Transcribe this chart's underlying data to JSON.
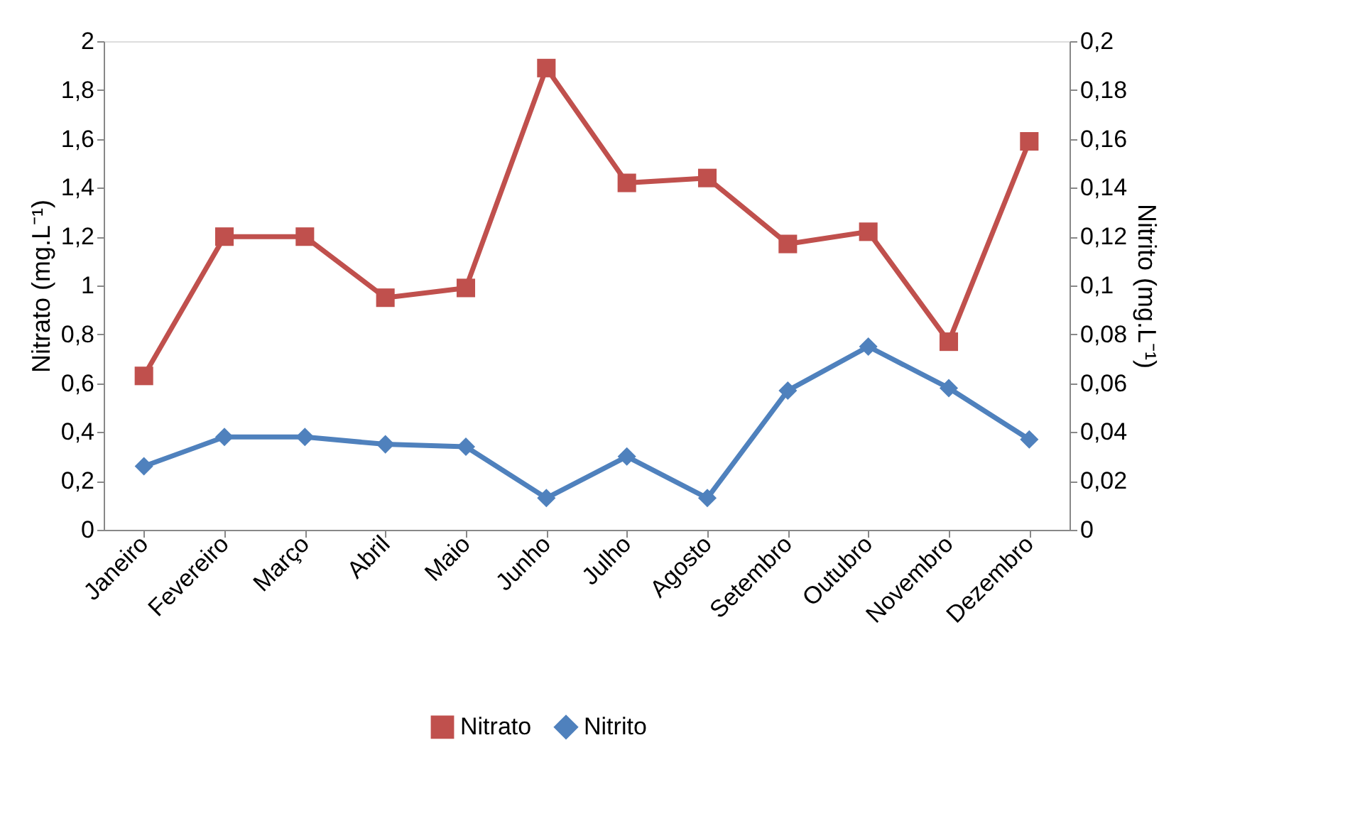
{
  "chart_data": {
    "type": "line",
    "categories": [
      "Janeiro",
      "Fevereiro",
      "Março",
      "Abril",
      "Maio",
      "Junho",
      "Julho",
      "Agosto",
      "Setembro",
      "Outubro",
      "Novembro",
      "Dezembro"
    ],
    "series": [
      {
        "name": "Nitrato",
        "color": "#c0504d",
        "marker": "square",
        "values": [
          0.63,
          1.2,
          1.2,
          0.95,
          0.99,
          1.89,
          1.42,
          1.44,
          1.17,
          1.22,
          0.77,
          1.59
        ]
      },
      {
        "name": "Nitrito",
        "color": "#4f81bd",
        "marker": "diamond",
        "axis": "y2",
        "values": [
          0.026,
          0.038,
          0.038,
          0.035,
          0.034,
          0.013,
          0.03,
          0.013,
          0.057,
          0.075,
          0.058,
          0.037
        ]
      }
    ],
    "ylabel": "Nitrato (mg.L⁻¹)",
    "y2label": "Nitrito (mg.L⁻¹)",
    "ylim": [
      0,
      2
    ],
    "yticks": [
      0,
      {
        "value": 0.2,
        "label": "0,2"
      },
      {
        "value": 0.4,
        "label": "0,4"
      },
      {
        "value": 0.6,
        "label": "0,6"
      },
      {
        "value": 0.8,
        "label": "0,8"
      },
      1,
      {
        "value": 1.2,
        "label": "1,2"
      },
      {
        "value": 1.4,
        "label": "1,4"
      },
      {
        "value": 1.6,
        "label": "1,6"
      },
      {
        "value": 1.8,
        "label": "1,8"
      },
      2
    ],
    "y2lim": [
      0,
      0.2
    ],
    "y2ticks": [
      0,
      {
        "value": 0.02,
        "label": "0,02"
      },
      {
        "value": 0.04,
        "label": "0,04"
      },
      {
        "value": 0.06,
        "label": "0,06"
      },
      {
        "value": 0.08,
        "label": "0,08"
      },
      {
        "value": 0.1,
        "label": "0,1"
      },
      {
        "value": 0.12,
        "label": "0,12"
      },
      {
        "value": 0.14,
        "label": "0,14"
      },
      {
        "value": 0.16,
        "label": "0,16"
      },
      {
        "value": 0.18,
        "label": "0,18"
      },
      {
        "value": 0.2,
        "label": "0,2"
      }
    ],
    "grid": false,
    "legend": "bottom"
  }
}
